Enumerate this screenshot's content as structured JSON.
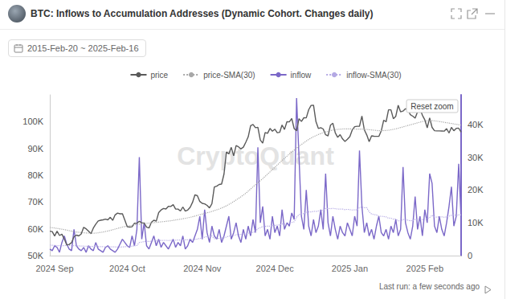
{
  "chart_data": {
    "type": "line",
    "title": "BTC: Inflows to Accumulation Addresses (Dynamic Cohort. Changes daily)",
    "subtitle": "2015-Feb-20 ~ 2025-Feb-16",
    "watermark": "CryptoQuant",
    "button": "Reset zoom",
    "footer": "Last run: a few seconds ago",
    "legend": "top",
    "grid": false,
    "categories": [
      null,
      null,
      "2024 Sep",
      null,
      null,
      null,
      null,
      null,
      null,
      null,
      null,
      null,
      null,
      null,
      null,
      null,
      null,
      null,
      null,
      null,
      null,
      null,
      null,
      null,
      null,
      null,
      null,
      null,
      null,
      null,
      null,
      null,
      "2024 Oct",
      null,
      null,
      null,
      null,
      null,
      null,
      null,
      null,
      null,
      null,
      null,
      null,
      null,
      null,
      null,
      null,
      null,
      null,
      null,
      null,
      null,
      null,
      null,
      null,
      null,
      null,
      null,
      null,
      null,
      null,
      "2024 Nov",
      null,
      null,
      null,
      null,
      null,
      null,
      null,
      null,
      null,
      null,
      null,
      null,
      null,
      null,
      null,
      null,
      null,
      null,
      null,
      null,
      null,
      null,
      null,
      null,
      null,
      null,
      null,
      null,
      null,
      "2024 Dec",
      null,
      null,
      null,
      null,
      null,
      null,
      null,
      null,
      null,
      null,
      null,
      null,
      null,
      null,
      null,
      null,
      null,
      null,
      null,
      null,
      null,
      null,
      null,
      null,
      null,
      null,
      null,
      null,
      null,
      null,
      "2025 Jan",
      null,
      null,
      null,
      null,
      null,
      null,
      null,
      null,
      null,
      null,
      null,
      null,
      null,
      null,
      null,
      null,
      null,
      null,
      null,
      null,
      null,
      null,
      null,
      null,
      null,
      null,
      null,
      null,
      null,
      null,
      "2025 Feb",
      null,
      null,
      null,
      null,
      null,
      null,
      null,
      null,
      null,
      null,
      null,
      null,
      null,
      null,
      null
    ],
    "ylim": [
      50000,
      110000
    ],
    "yticks": [
      {
        "value": 50000,
        "label": "50K"
      },
      {
        "value": 60000,
        "label": "60K"
      },
      {
        "value": 70000,
        "label": "70K"
      },
      {
        "value": 80000,
        "label": "80K"
      },
      {
        "value": 90000,
        "label": "90K"
      },
      {
        "value": 100000,
        "label": "100K"
      }
    ],
    "y2lim": [
      0,
      49000
    ],
    "y2ticks": [
      0,
      {
        "value": 10000,
        "label": "10K"
      },
      {
        "value": 20000,
        "label": "20K"
      },
      {
        "value": 30000,
        "label": "30K"
      },
      {
        "value": 40000,
        "label": "40K"
      }
    ],
    "series": [
      {
        "name": "price",
        "color": "#5a5a5a",
        "line_style": "solid",
        "values": [
          59100,
          58970,
          57300,
          59100,
          57500,
          58000,
          56200,
          53950,
          54150,
          54850,
          57050,
          57650,
          57350,
          58100,
          60550,
          60000,
          59150,
          58200,
          60300,
          61750,
          62950,
          63200,
          63350,
          63600,
          63350,
          64300,
          63150,
          65200,
          65850,
          65600,
          65650,
          63300,
          60800,
          60650,
          60750,
          62100,
          62050,
          62800,
          62250,
          62150,
          60600,
          60300,
          62450,
          63200,
          62850,
          66050,
          67050,
          67600,
          67400,
          68400,
          68350,
          69000,
          67350,
          67350,
          66650,
          68150,
          66600,
          67000,
          68000,
          69900,
          72700,
          72350,
          70200,
          69500,
          69300,
          68750,
          67800,
          69350,
          75600,
          75900,
          76550,
          76700,
          80450,
          88700,
          87950,
          90400,
          87250,
          91050,
          90600,
          89850,
          90450,
          92300,
          94300,
          98500,
          98950,
          97750,
          97900,
          93150,
          91950,
          95950,
          95650,
          97450,
          96450,
          97200,
          95850,
          96000,
          98750,
          97050,
          99950,
          99900,
          101200,
          97400,
          96600,
          101100,
          100050,
          101450,
          101400,
          104450,
          106050,
          106150,
          100000,
          97450,
          97750,
          97250,
          95100,
          94700,
          98650,
          99400,
          95800,
          94150,
          95150,
          93550,
          92600,
          93400,
          94400,
          96900,
          98100,
          98250,
          98300,
          102100,
          96950,
          95050,
          92500,
          94700,
          94550,
          94500,
          94500,
          96550,
          100500,
          99950,
          104400,
          104400,
          101100,
          102000,
          106100,
          103650,
          103950,
          104800,
          104700,
          102600,
          102050,
          101300,
          103700,
          104700,
          102400,
          100650,
          97700,
          101400,
          97850,
          96600,
          96550,
          96550,
          96500,
          96450,
          97400,
          95750,
          97850,
          96600,
          97500,
          97550,
          96100
        ]
      },
      {
        "name": "price-SMA(30)",
        "color": "#a8a8a8",
        "line_style": "dotted",
        "values": [
          60500,
          60400,
          60300,
          60150,
          60000,
          59850,
          59700,
          59500,
          59300,
          59100,
          58900,
          58800,
          58700,
          58600,
          58500,
          58450,
          58400,
          58350,
          58350,
          58400,
          58500,
          58650,
          58800,
          59000,
          59200,
          59400,
          59650,
          59900,
          60150,
          60400,
          60650,
          60850,
          61000,
          61150,
          61300,
          61450,
          61600,
          61750,
          61900,
          62000,
          62050,
          62100,
          62200,
          62300,
          62400,
          62500,
          62600,
          62700,
          62800,
          62900,
          63000,
          63150,
          63300,
          63450,
          63600,
          63750,
          63900,
          64100,
          64300,
          64500,
          64750,
          65000,
          65250,
          65500,
          65750,
          66000,
          66200,
          66500,
          66800,
          67100,
          67400,
          67750,
          68150,
          68600,
          69100,
          69600,
          70150,
          70750,
          71350,
          71950,
          72600,
          73300,
          74050,
          74850,
          75650,
          76450,
          77250,
          78000,
          78750,
          79550,
          80400,
          81250,
          82100,
          82950,
          83800,
          84650,
          85500,
          86300,
          87100,
          87900,
          88700,
          89400,
          90100,
          90800,
          91450,
          92100,
          92750,
          93350,
          93900,
          94400,
          94800,
          95200,
          95550,
          95850,
          96150,
          96400,
          96650,
          96850,
          97000,
          97100,
          97200,
          97250,
          97300,
          97300,
          97300,
          97250,
          97250,
          97200,
          97200,
          97200,
          97150,
          97100,
          97000,
          96900,
          96800,
          96700,
          96600,
          96600,
          96650,
          96700,
          96800,
          96950,
          97100,
          97300,
          97550,
          97800,
          98050,
          98300,
          98550,
          98800,
          99050,
          99300,
          99550,
          99800,
          100050,
          100200,
          100300,
          100350,
          100350,
          100300,
          100200,
          100050,
          99900,
          99750,
          99600,
          99450,
          99300,
          99150,
          99000,
          98850,
          98700
        ]
      },
      {
        "name": "inflow",
        "color": "#7b68c8",
        "line_style": "solid",
        "axis": "y2",
        "values": [
          2000,
          1500,
          3000,
          2500,
          1000,
          4000,
          6000,
          3500,
          2000,
          1500,
          8000,
          3000,
          2000,
          1500,
          2500,
          1000,
          3000,
          2000,
          1500,
          4000,
          2000,
          1500,
          1000,
          2500,
          3000,
          2000,
          1500,
          1000,
          2000,
          3500,
          5000,
          4000,
          3000,
          2500,
          6000,
          3000,
          8000,
          30000,
          5000,
          10000,
          3000,
          2000,
          4000,
          6000,
          3000,
          5000,
          2500,
          4000,
          3000,
          2000,
          3500,
          5000,
          2500,
          4000,
          3000,
          6000,
          2000,
          3000,
          5000,
          4000,
          6000,
          8000,
          12000,
          5000,
          14000,
          7000,
          4000,
          9000,
          6000,
          5000,
          8000,
          4000,
          6000,
          9000,
          12000,
          5000,
          7000,
          10000,
          6000,
          4000,
          8000,
          5000,
          9000,
          6000,
          11000,
          7000,
          33000,
          10000,
          15000,
          6000,
          8000,
          5000,
          12000,
          7000,
          9000,
          6000,
          14000,
          8000,
          10000,
          9000,
          13000,
          11000,
          48000,
          30000,
          12000,
          8000,
          20000,
          9000,
          6000,
          11000,
          7000,
          9000,
          14000,
          8000,
          25000,
          10000,
          6000,
          12000,
          8000,
          5000,
          9000,
          7000,
          6000,
          10000,
          8000,
          6000,
          12000,
          9000,
          32000,
          15000,
          7000,
          10000,
          6000,
          8000,
          5000,
          9000,
          12000,
          7000,
          6000,
          8000,
          5000,
          9000,
          7000,
          11000,
          6000,
          8000,
          27000,
          10000,
          7000,
          5000,
          9000,
          18000,
          8000,
          12000,
          6000,
          14000,
          10000,
          25000,
          22000,
          9000,
          7000,
          12000,
          8000,
          6000,
          10000,
          15000,
          21000,
          9000,
          12000,
          28000,
          11000
        ]
      },
      {
        "name": "inflow-SMA(30)",
        "color": "#b4a9e4",
        "line_style": "dotted",
        "axis": "y2",
        "values": [
          3200,
          3150,
          3100,
          3050,
          3000,
          3000,
          3050,
          3100,
          3100,
          3050,
          3000,
          3000,
          2950,
          2900,
          2900,
          2850,
          2850,
          2800,
          2800,
          2800,
          2750,
          2750,
          2700,
          2700,
          2700,
          2650,
          2650,
          2650,
          2600,
          2600,
          2650,
          2700,
          2750,
          2800,
          2900,
          2950,
          3100,
          4000,
          4100,
          4300,
          4300,
          4300,
          4400,
          4500,
          4500,
          4600,
          4600,
          4650,
          4650,
          4600,
          4650,
          4700,
          4700,
          4750,
          4750,
          4800,
          4800,
          4800,
          4850,
          4900,
          4950,
          5050,
          5250,
          5300,
          5650,
          5800,
          5850,
          6000,
          5150,
          5150,
          5300,
          5350,
          5450,
          5650,
          5950,
          6000,
          6150,
          6350,
          6450,
          6450,
          6600,
          6650,
          6850,
          6900,
          7150,
          7250,
          8250,
          8500,
          8850,
          8900,
          9000,
          8950,
          9150,
          9200,
          9300,
          9350,
          9650,
          9650,
          9800,
          9900,
          10100,
          10300,
          11700,
          12500,
          12700,
          12800,
          13200,
          13300,
          13300,
          13500,
          13450,
          13600,
          13750,
          13850,
          14350,
          14400,
          14300,
          14400,
          14300,
          14200,
          14200,
          14200,
          14000,
          14100,
          14000,
          13900,
          13950,
          13950,
          14600,
          14800,
          14600,
          14600,
          13300,
          12700,
          12500,
          12400,
          12000,
          12000,
          11900,
          11800,
          11400,
          11400,
          11100,
          11200,
          10600,
          10600,
          11000,
          11000,
          10800,
          10600,
          10700,
          11000,
          11000,
          11100,
          11000,
          11300,
          11300,
          11600,
          12300,
          11800,
          11700,
          11800,
          11800,
          11700,
          11800,
          12000,
          12300,
          12400,
          12300,
          12400,
          12400
        ]
      }
    ]
  }
}
